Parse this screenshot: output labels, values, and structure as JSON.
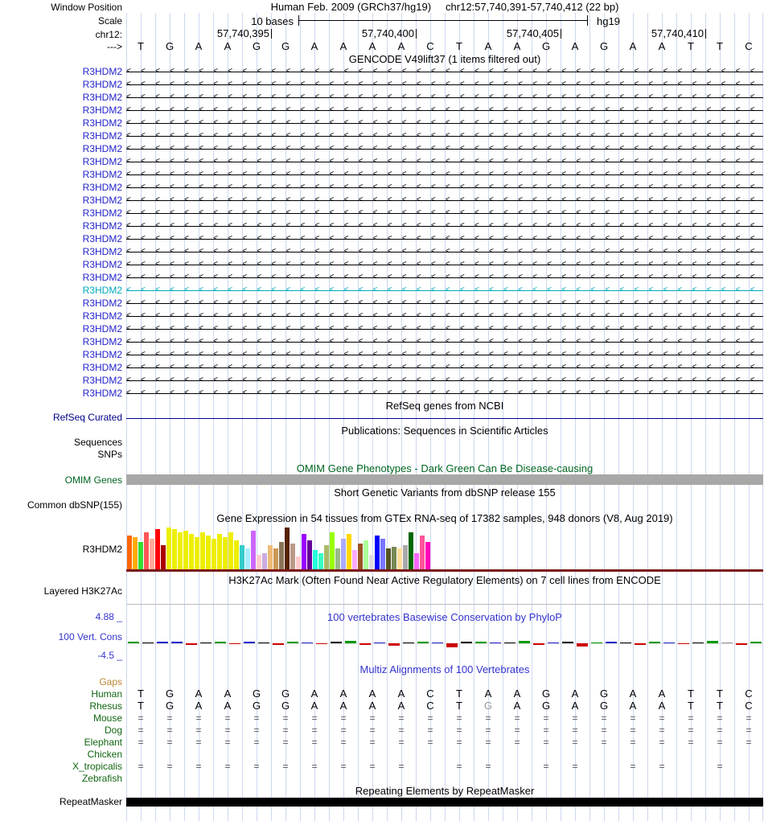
{
  "header": {
    "window_position_label": "Window Position",
    "assembly_title": "Human Feb. 2009 (GRCh37/hg19)",
    "position_title": "chr12:57,740,391-57,740,412 (22 bp)",
    "scale_label": "Scale",
    "scale_value": "10 bases",
    "assembly_short": "hg19",
    "chrom_label": "chr12:",
    "coordinate_ticks": [
      "57,740,395",
      "57,740,400",
      "57,740,405",
      "57,740,410"
    ],
    "strand_arrow": "--->"
  },
  "sequence": {
    "bases": [
      "T",
      "G",
      "A",
      "A",
      "G",
      "G",
      "A",
      "A",
      "A",
      "A",
      "C",
      "T",
      "A",
      "A",
      "G",
      "A",
      "G",
      "A",
      "A",
      "T",
      "T",
      "C"
    ]
  },
  "gencode": {
    "title": "GENCODE V49lift37 (1 items filtered out)",
    "gene_label": "R3HDM2",
    "rows": 26,
    "highlighted_row": 17,
    "arrow_char": "<"
  },
  "refseq": {
    "title": "RefSeq genes from NCBI",
    "label": "RefSeq Curated"
  },
  "publications": {
    "title": "Publications: Sequences in Scientific Articles",
    "sequences_label": "Sequences",
    "snps_label": "SNPs"
  },
  "omim": {
    "title": "OMIM Gene Phenotypes - Dark Green Can Be Disease-causing",
    "label": "OMIM Genes"
  },
  "dbsnp": {
    "title": "Short Genetic Variants from dbSNP release 155",
    "label": "Common dbSNP(155)"
  },
  "gtex": {
    "title": "Gene Expression in 54 tissues from GTEx RNA-seq of 17382 samples, 948 donors (V8, Aug 2019)",
    "gene": "R3HDM2",
    "chart": {
      "type": "bar",
      "bar_heights": [
        42,
        40,
        34,
        46,
        38,
        50,
        30,
        52,
        50,
        46,
        48,
        44,
        40,
        46,
        42,
        38,
        44,
        40,
        46,
        36,
        30,
        26,
        48,
        18,
        20,
        30,
        26,
        34,
        52,
        32,
        16,
        44,
        36,
        24,
        20,
        30,
        46,
        26,
        38,
        44,
        24,
        32,
        36,
        18,
        42,
        38,
        26,
        28,
        26,
        30,
        46,
        20,
        42,
        34
      ],
      "bar_colors": [
        "#FF6600",
        "#FFAA00",
        "#33DD33",
        "#FF5555",
        "#FFAA99",
        "#FF0000",
        "#AA0000",
        "#EEEE00",
        "#EEEE00",
        "#EEEE00",
        "#EEEE00",
        "#EEEE00",
        "#EEEE00",
        "#EEEE00",
        "#EEEE00",
        "#EEEE00",
        "#EEEE00",
        "#EEEE00",
        "#EEEE00",
        "#EEEE00",
        "#33CCCC",
        "#AAEEFF",
        "#CC66FF",
        "#FFCCCC",
        "#CCAADD",
        "#EEBB77",
        "#CC9955",
        "#8B7355",
        "#552200",
        "#BB9988",
        "#FFCCCC",
        "#9900FF",
        "#660099",
        "#22FFDD",
        "#33FFC2",
        "#AABB66",
        "#99FF00",
        "#99BB88",
        "#AAAAFF",
        "#FFD700",
        "#FFAAFF",
        "#995522",
        "#AAFF99",
        "#DDDDDD",
        "#0000FF",
        "#7777FF",
        "#555522",
        "#778855",
        "#FFDD99",
        "#AAAAAA",
        "#006600",
        "#FF66FF",
        "#FF5599",
        "#FF00BB"
      ]
    }
  },
  "h3k27ac": {
    "title": "H3K27Ac Mark (Often Found Near Active Regulatory Elements) on 7 cell lines from ENCODE",
    "label": "Layered H3K27Ac"
  },
  "conservation": {
    "title": "100 vertebrates Basewise Conservation by PhyloP",
    "label": "100 Vert. Cons",
    "max": "4.88 _",
    "min": "-4.5 _",
    "ticks": [
      [
        "G",
        2
      ],
      [
        "K",
        1
      ],
      [
        "B",
        2
      ],
      [
        "B",
        2
      ],
      [
        "R",
        -2
      ],
      [
        "K",
        1
      ],
      [
        "G",
        2
      ],
      [
        "R",
        -1
      ],
      [
        "B",
        2
      ],
      [
        "K",
        1
      ],
      [
        "R",
        -2
      ],
      [
        "G",
        2
      ],
      [
        "B",
        1
      ],
      [
        "R",
        -1
      ],
      [
        "K",
        2
      ],
      [
        "G",
        3
      ],
      [
        "R",
        -2
      ],
      [
        "B",
        1
      ],
      [
        "R",
        -3
      ],
      [
        "K",
        1
      ],
      [
        "G",
        2
      ],
      [
        "B",
        1
      ],
      [
        "R",
        -5
      ],
      [
        "K",
        2
      ],
      [
        "G",
        2
      ],
      [
        "B",
        1
      ],
      [
        "K",
        1
      ],
      [
        "G",
        3
      ],
      [
        "R",
        -2
      ],
      [
        "B",
        1
      ],
      [
        "K",
        2
      ],
      [
        "R",
        -4
      ],
      [
        "G",
        1
      ],
      [
        "B",
        2
      ],
      [
        "K",
        1
      ],
      [
        "R",
        -2
      ],
      [
        "G",
        2
      ],
      [
        "B",
        1
      ],
      [
        "R",
        -1
      ],
      [
        "K",
        1
      ],
      [
        "G",
        3
      ],
      [
        "A",
        1
      ],
      [
        "R",
        -2
      ],
      [
        "G",
        2
      ]
    ]
  },
  "multiz": {
    "title": "Multiz Alignments of 100 Vertebrates",
    "gap_char": "=",
    "rows": [
      {
        "name": "Gaps",
        "is_gaps": true
      },
      {
        "name": "Human",
        "bases": [
          "T",
          "G",
          "A",
          "A",
          "G",
          "G",
          "A",
          "A",
          "A",
          "A",
          "C",
          "T",
          "A",
          "A",
          "G",
          "A",
          "G",
          "A",
          "A",
          "T",
          "T",
          "C"
        ]
      },
      {
        "name": "Rhesus",
        "bases": [
          "T",
          "G",
          "A",
          "A",
          "G",
          "G",
          "A",
          "A",
          "A",
          "A",
          "C",
          "T",
          "G",
          "A",
          "G",
          "A",
          "G",
          "A",
          "A",
          "T",
          "T",
          "C"
        ],
        "gray_indices": [
          12
        ]
      },
      {
        "name": "Mouse",
        "gap_columns": [
          0,
          1,
          2,
          3,
          4,
          5,
          6,
          7,
          8,
          9,
          10,
          11,
          12,
          13,
          14,
          15,
          16,
          17,
          18,
          19,
          20,
          21
        ]
      },
      {
        "name": "Dog",
        "gap_columns": [
          0,
          1,
          2,
          3,
          4,
          5,
          6,
          7,
          8,
          9,
          10,
          11,
          12,
          13,
          14,
          15,
          16,
          17,
          18,
          19,
          20,
          21
        ]
      },
      {
        "name": "Elephant",
        "gap_columns": [
          0,
          1,
          2,
          3,
          4,
          5,
          6,
          7,
          8,
          9,
          10,
          11,
          12,
          13,
          14,
          15,
          16,
          17,
          18,
          19,
          20,
          21
        ]
      },
      {
        "name": "Chicken",
        "gap_columns": []
      },
      {
        "name": "X_tropicalis",
        "gap_columns": [
          0,
          1,
          2,
          3,
          4,
          5,
          6,
          7,
          8,
          9,
          11,
          12,
          14,
          15,
          17,
          18,
          20
        ]
      },
      {
        "name": "Zebrafish",
        "gap_columns": []
      }
    ]
  },
  "repeatmasker": {
    "title": "Repeating Elements by RepeatMasker",
    "label": "RepeatMasker"
  },
  "colors": {
    "grid": "#CDD7F0",
    "gene_label": "#2222CC",
    "gene_line": "#000000",
    "highlight_label": "#00AABB",
    "refseq": "#000088",
    "omim_green": "#006622",
    "omim_bar": "#A8A8A8",
    "gtex_baseline": "#7A1A1A",
    "cons_blue": "#3333CC",
    "species_label": "#116611",
    "gaps_label": "#BB8833",
    "eq": "#555555",
    "gray_base": "#999999",
    "track_sep": "#BBBBBB",
    "cons": {
      "G": "#009900",
      "R": "#CC0000",
      "B": "#2222CC",
      "K": "#000000",
      "A": "#999999"
    }
  }
}
